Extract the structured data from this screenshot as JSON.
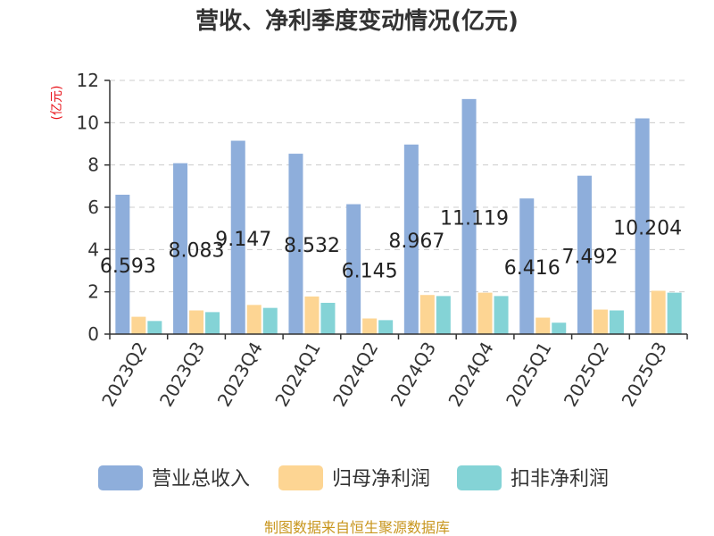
{
  "chart_data": {
    "type": "bar",
    "title": "营收、净利季度变动情况(亿元)",
    "ylabel": "(亿元)",
    "xlabel": "",
    "ylim": [
      0,
      12
    ],
    "yticks": [
      0,
      2,
      4,
      6,
      8,
      10,
      12
    ],
    "grid": true,
    "legend_position": "bottom",
    "categories": [
      "2023Q2",
      "2023Q3",
      "2023Q4",
      "2024Q1",
      "2024Q2",
      "2024Q3",
      "2024Q4",
      "2025Q1",
      "2025Q2",
      "2025Q3"
    ],
    "series": [
      {
        "name": "营业总收入",
        "color": "#8eaedb",
        "values": [
          6.593,
          8.083,
          9.147,
          8.532,
          6.145,
          8.967,
          11.119,
          6.416,
          7.492,
          10.204
        ],
        "labeled": true
      },
      {
        "name": "归母净利润",
        "color": "#fdd593",
        "values": [
          0.82,
          1.12,
          1.38,
          1.78,
          0.74,
          1.85,
          1.96,
          0.78,
          1.16,
          2.05
        ],
        "labeled": false
      },
      {
        "name": "扣非净利润",
        "color": "#84d3d6",
        "values": [
          0.62,
          1.04,
          1.24,
          1.48,
          0.66,
          1.8,
          1.8,
          0.54,
          1.12,
          1.96
        ],
        "labeled": false
      }
    ],
    "data_labels": [
      "6.593",
      "8.083",
      "9.147",
      "8.532",
      "6.145",
      "8.967",
      "11.119",
      "6.416",
      "7.492",
      "10.204"
    ]
  },
  "footer": "制图数据来自恒生聚源数据库"
}
